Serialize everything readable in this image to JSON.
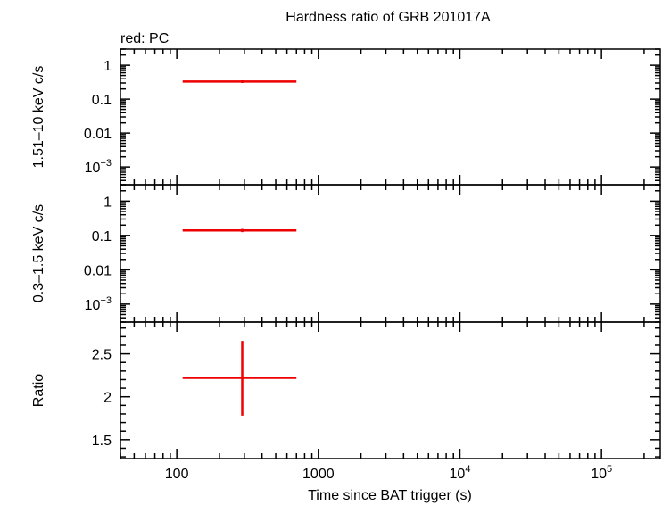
{
  "chart_data": {
    "type": "scatter",
    "title": "Hardness ratio of GRB 201017A",
    "subtitle": "red: PC",
    "xlabel": "Time since BAT trigger (s)",
    "xscale": "log",
    "xlim": [
      40,
      260000
    ],
    "x_ticks": [
      {
        "value": 100,
        "base": "100",
        "exp": ""
      },
      {
        "value": 1000,
        "base": "1000",
        "exp": ""
      },
      {
        "value": 10000,
        "base": "10",
        "exp": "4"
      },
      {
        "value": 100000,
        "base": "10",
        "exp": "5"
      }
    ],
    "series_color": "#ee0000",
    "panels": [
      {
        "id": "hard",
        "ylabel": "1.51–10 keV c/s",
        "yscale": "log",
        "ylim": [
          0.0003,
          3
        ],
        "y_ticks": [
          {
            "value": 1,
            "base": "1",
            "exp": ""
          },
          {
            "value": 0.1,
            "base": "0.1",
            "exp": ""
          },
          {
            "value": 0.01,
            "base": "0.01",
            "exp": ""
          },
          {
            "value": 0.001,
            "base": "10",
            "exp": "−3"
          }
        ],
        "points": [
          {
            "x": 290,
            "xlo": 110,
            "xhi": 700,
            "y": 0.33,
            "ylo": 0.3,
            "yhi": 0.36
          }
        ]
      },
      {
        "id": "soft",
        "ylabel": "0.3–1.5 keV c/s",
        "yscale": "log",
        "ylim": [
          0.0003,
          3
        ],
        "y_ticks": [
          {
            "value": 1,
            "base": "1",
            "exp": ""
          },
          {
            "value": 0.1,
            "base": "0.1",
            "exp": ""
          },
          {
            "value": 0.01,
            "base": "0.01",
            "exp": ""
          },
          {
            "value": 0.001,
            "base": "10",
            "exp": "−3"
          }
        ],
        "points": [
          {
            "x": 290,
            "xlo": 110,
            "xhi": 700,
            "y": 0.14,
            "ylo": 0.125,
            "yhi": 0.155
          }
        ]
      },
      {
        "id": "ratio",
        "ylabel": "Ratio",
        "yscale": "linear",
        "ylim": [
          1.28,
          2.87
        ],
        "y_ticks": [
          {
            "value": 2.5,
            "base": "2.5",
            "exp": ""
          },
          {
            "value": 2,
            "base": "2",
            "exp": ""
          },
          {
            "value": 1.5,
            "base": "1.5",
            "exp": ""
          }
        ],
        "points": [
          {
            "x": 290,
            "xlo": 110,
            "xhi": 700,
            "y": 2.22,
            "ylo": 1.78,
            "yhi": 2.65
          }
        ]
      }
    ]
  }
}
